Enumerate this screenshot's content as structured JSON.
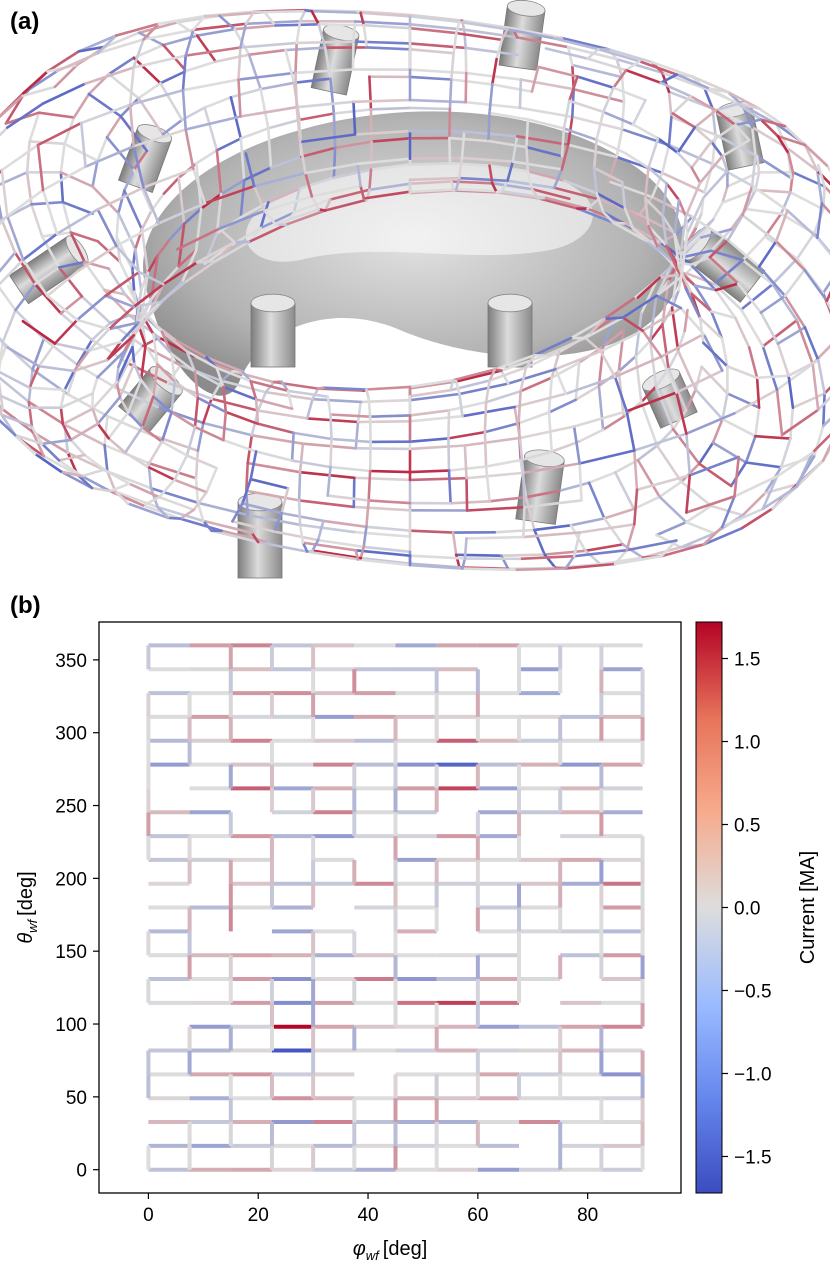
{
  "panels": {
    "a": {
      "label": "(a)"
    },
    "b": {
      "label": "(b)"
    }
  },
  "colors": {
    "negative": "#3b4cc0",
    "zero": "#dddddd",
    "positive": "#b40426",
    "cylinder": "#a9a9a9",
    "torus": "#b7b7b7"
  },
  "chart_data": {
    "type": "heatmap",
    "description": "Wireframe segment currents on a (phi, theta) grid, colored by current",
    "xlabel_symbol": "φ",
    "xlabel_subscript": "wf",
    "xlabel_unit": "[deg]",
    "ylabel_symbol": "θ",
    "ylabel_subscript": "wf",
    "ylabel_unit": "[deg]",
    "xlim": [
      -9,
      97
    ],
    "ylim": [
      -16,
      376
    ],
    "x_ticks": [
      "0",
      "20",
      "40",
      "60",
      "80"
    ],
    "y_ticks": [
      "0",
      "50",
      "100",
      "150",
      "200",
      "250",
      "300",
      "350"
    ],
    "phi_grid_step_deg": 7.5,
    "theta_grid_step_deg": 16.36,
    "colorbar": {
      "label": "Current [MA]",
      "range": [
        -1.72,
        1.72
      ],
      "ticks": [
        "1.5",
        "1.0",
        "0.5",
        "0.0",
        "−0.5",
        "−1.0",
        "−1.5"
      ]
    },
    "highlighted_segments": [
      {
        "orientation": "horizontal",
        "phi_start": 22.5,
        "phi_end": 30.0,
        "theta": 98.2,
        "current_MA": 1.7
      },
      {
        "orientation": "horizontal",
        "phi_start": 22.5,
        "phi_end": 30.0,
        "theta": 81.8,
        "current_MA": -1.6
      },
      {
        "orientation": "horizontal",
        "phi_start": 52.5,
        "phi_end": 60.0,
        "theta": 278.2,
        "current_MA": -1.45
      },
      {
        "orientation": "horizontal",
        "phi_start": 52.5,
        "phi_end": 60.0,
        "theta": 261.8,
        "current_MA": 1.2
      },
      {
        "orientation": "horizontal",
        "phi_start": 52.5,
        "phi_end": 60.0,
        "theta": 114.5,
        "current_MA": 1.25
      },
      {
        "orientation": "horizontal",
        "phi_start": 52.5,
        "phi_end": 60.0,
        "theta": 294.5,
        "current_MA": 1.0
      },
      {
        "orientation": "horizontal",
        "phi_start": 15.0,
        "phi_end": 22.5,
        "theta": 261.8,
        "current_MA": 1.0
      },
      {
        "orientation": "horizontal",
        "phi_start": 22.5,
        "phi_end": 30.0,
        "theta": 114.5,
        "current_MA": -0.95
      },
      {
        "orientation": "horizontal",
        "phi_start": 45.0,
        "phi_end": 52.5,
        "theta": 114.5,
        "current_MA": 0.85
      },
      {
        "orientation": "horizontal",
        "phi_start": 60.0,
        "phi_end": 67.5,
        "theta": 114.5,
        "current_MA": 0.85
      }
    ]
  }
}
